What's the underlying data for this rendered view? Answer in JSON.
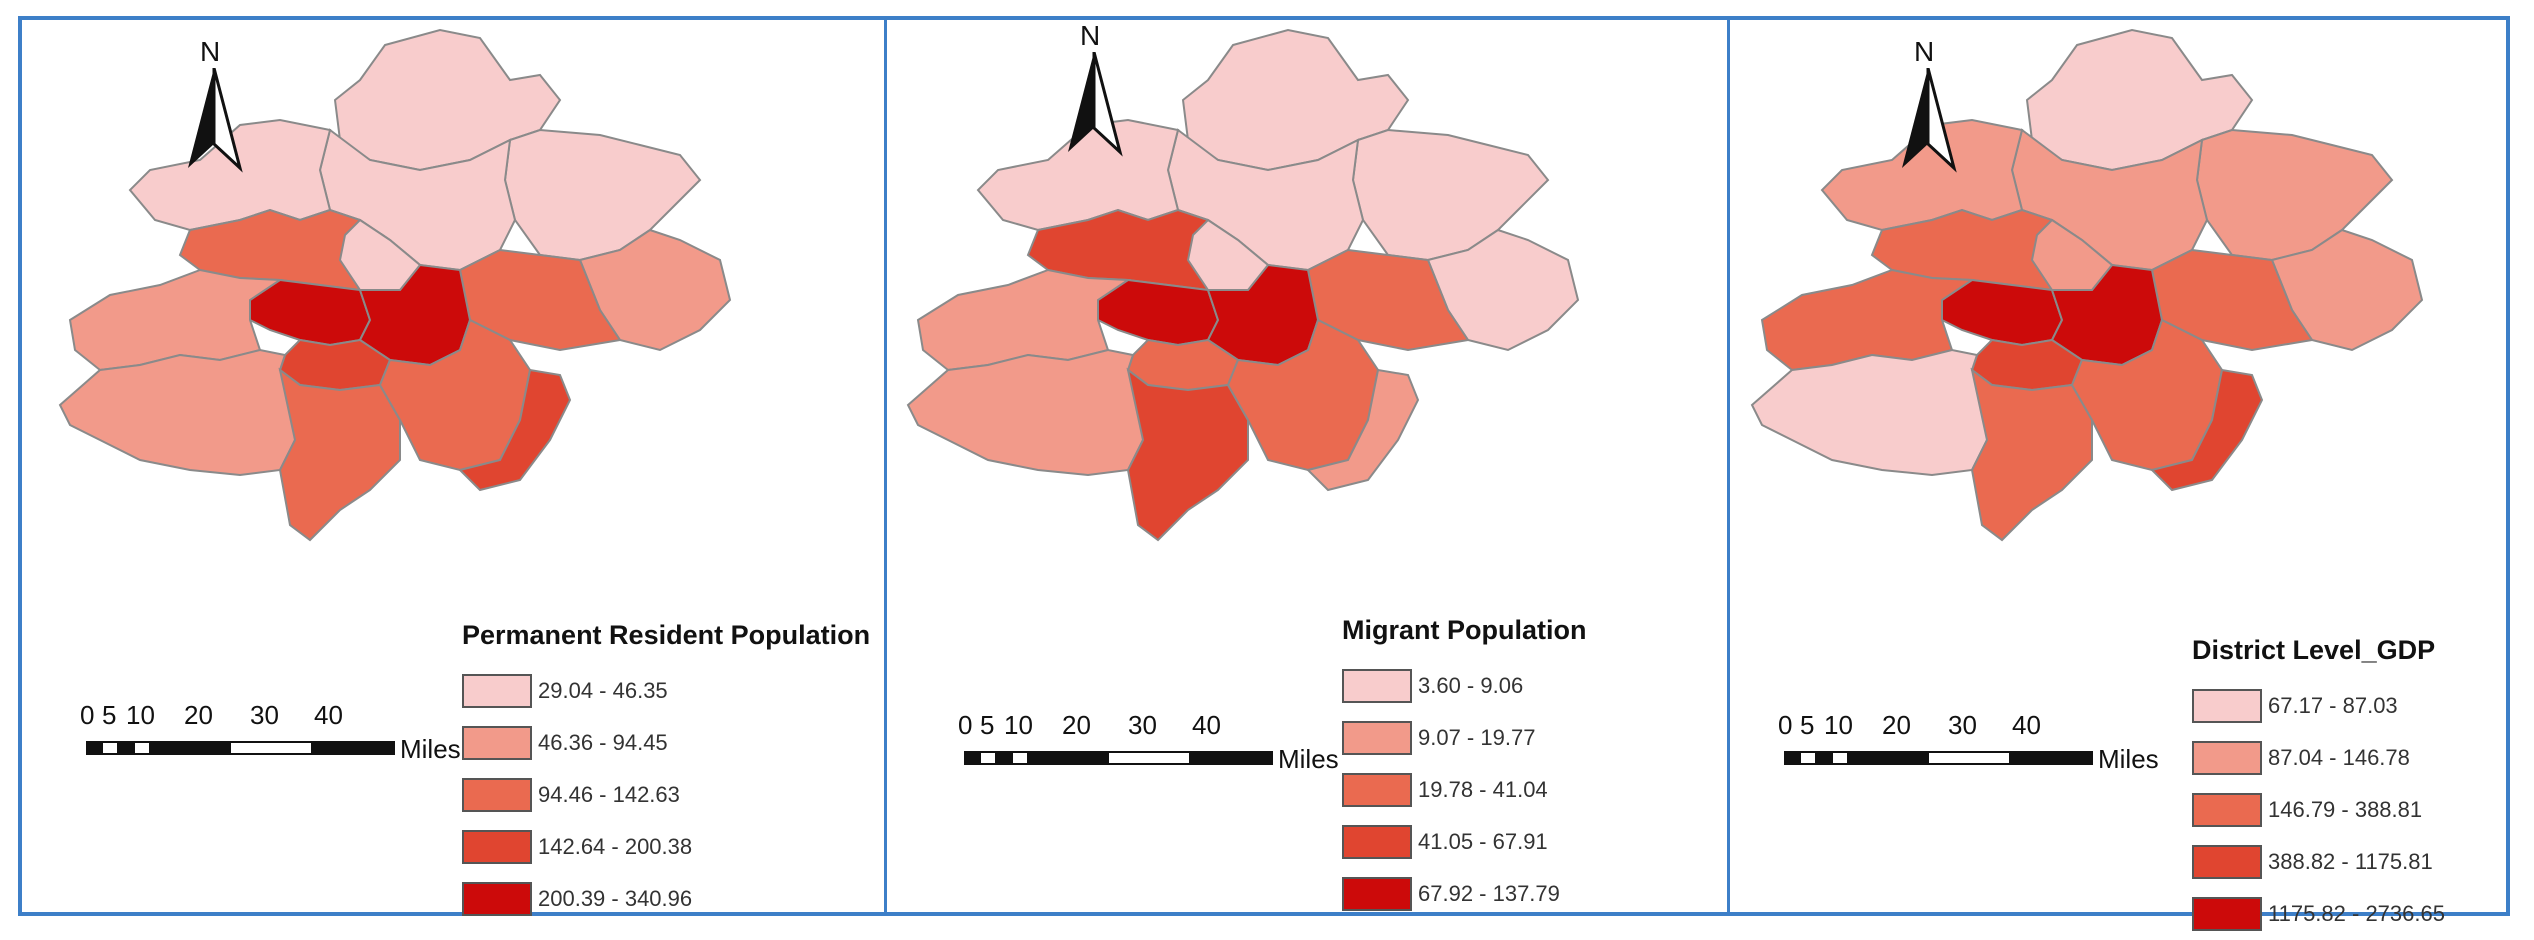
{
  "north_label": "N",
  "scale": {
    "ticks": [
      "0",
      "5",
      "10",
      "20",
      "30",
      "40"
    ],
    "units": "Miles"
  },
  "panels": [
    {
      "legend_title": "Permanent  Resident Population",
      "classes": [
        {
          "label": "29.04 - 46.35",
          "color": "#f8cccc"
        },
        {
          "label": "46.36 - 94.45",
          "color": "#f29a8a"
        },
        {
          "label": "94.46 - 142.63",
          "color": "#ea6a50"
        },
        {
          "label": "142.64 - 200.38",
          "color": "#e04530"
        },
        {
          "label": "200.39 - 340.96",
          "color": "#cc0a0a"
        }
      ],
      "district_classes": [
        1,
        1,
        1,
        1,
        2,
        3,
        3,
        5,
        5,
        4,
        2,
        2,
        3,
        3,
        4,
        1
      ]
    },
    {
      "legend_title": "Migrant Population",
      "classes": [
        {
          "label": "3.60 - 9.06",
          "color": "#f8cccc"
        },
        {
          "label": "9.07 - 19.77",
          "color": "#f29a8a"
        },
        {
          "label": "19.78 - 41.04",
          "color": "#ea6a50"
        },
        {
          "label": "41.05 - 67.91",
          "color": "#e04530"
        },
        {
          "label": "67.92 - 137.79",
          "color": "#cc0a0a"
        }
      ],
      "district_classes": [
        1,
        1,
        1,
        1,
        1,
        3,
        4,
        5,
        5,
        3,
        2,
        2,
        4,
        3,
        2,
        1
      ]
    },
    {
      "legend_title": "District Level_GDP",
      "classes": [
        {
          "label": "67.17 - 87.03",
          "color": "#f8cccc"
        },
        {
          "label": "87.04 - 146.78",
          "color": "#f29a8a"
        },
        {
          "label": "146.79 - 388.81",
          "color": "#ea6a50"
        },
        {
          "label": "388.82 - 1175.81",
          "color": "#e04530"
        },
        {
          "label": "1175.82 - 2736.65",
          "color": "#cc0a0a"
        }
      ],
      "district_classes": [
        1,
        2,
        2,
        2,
        2,
        3,
        3,
        5,
        5,
        4,
        3,
        1,
        3,
        3,
        4,
        2
      ]
    }
  ]
}
